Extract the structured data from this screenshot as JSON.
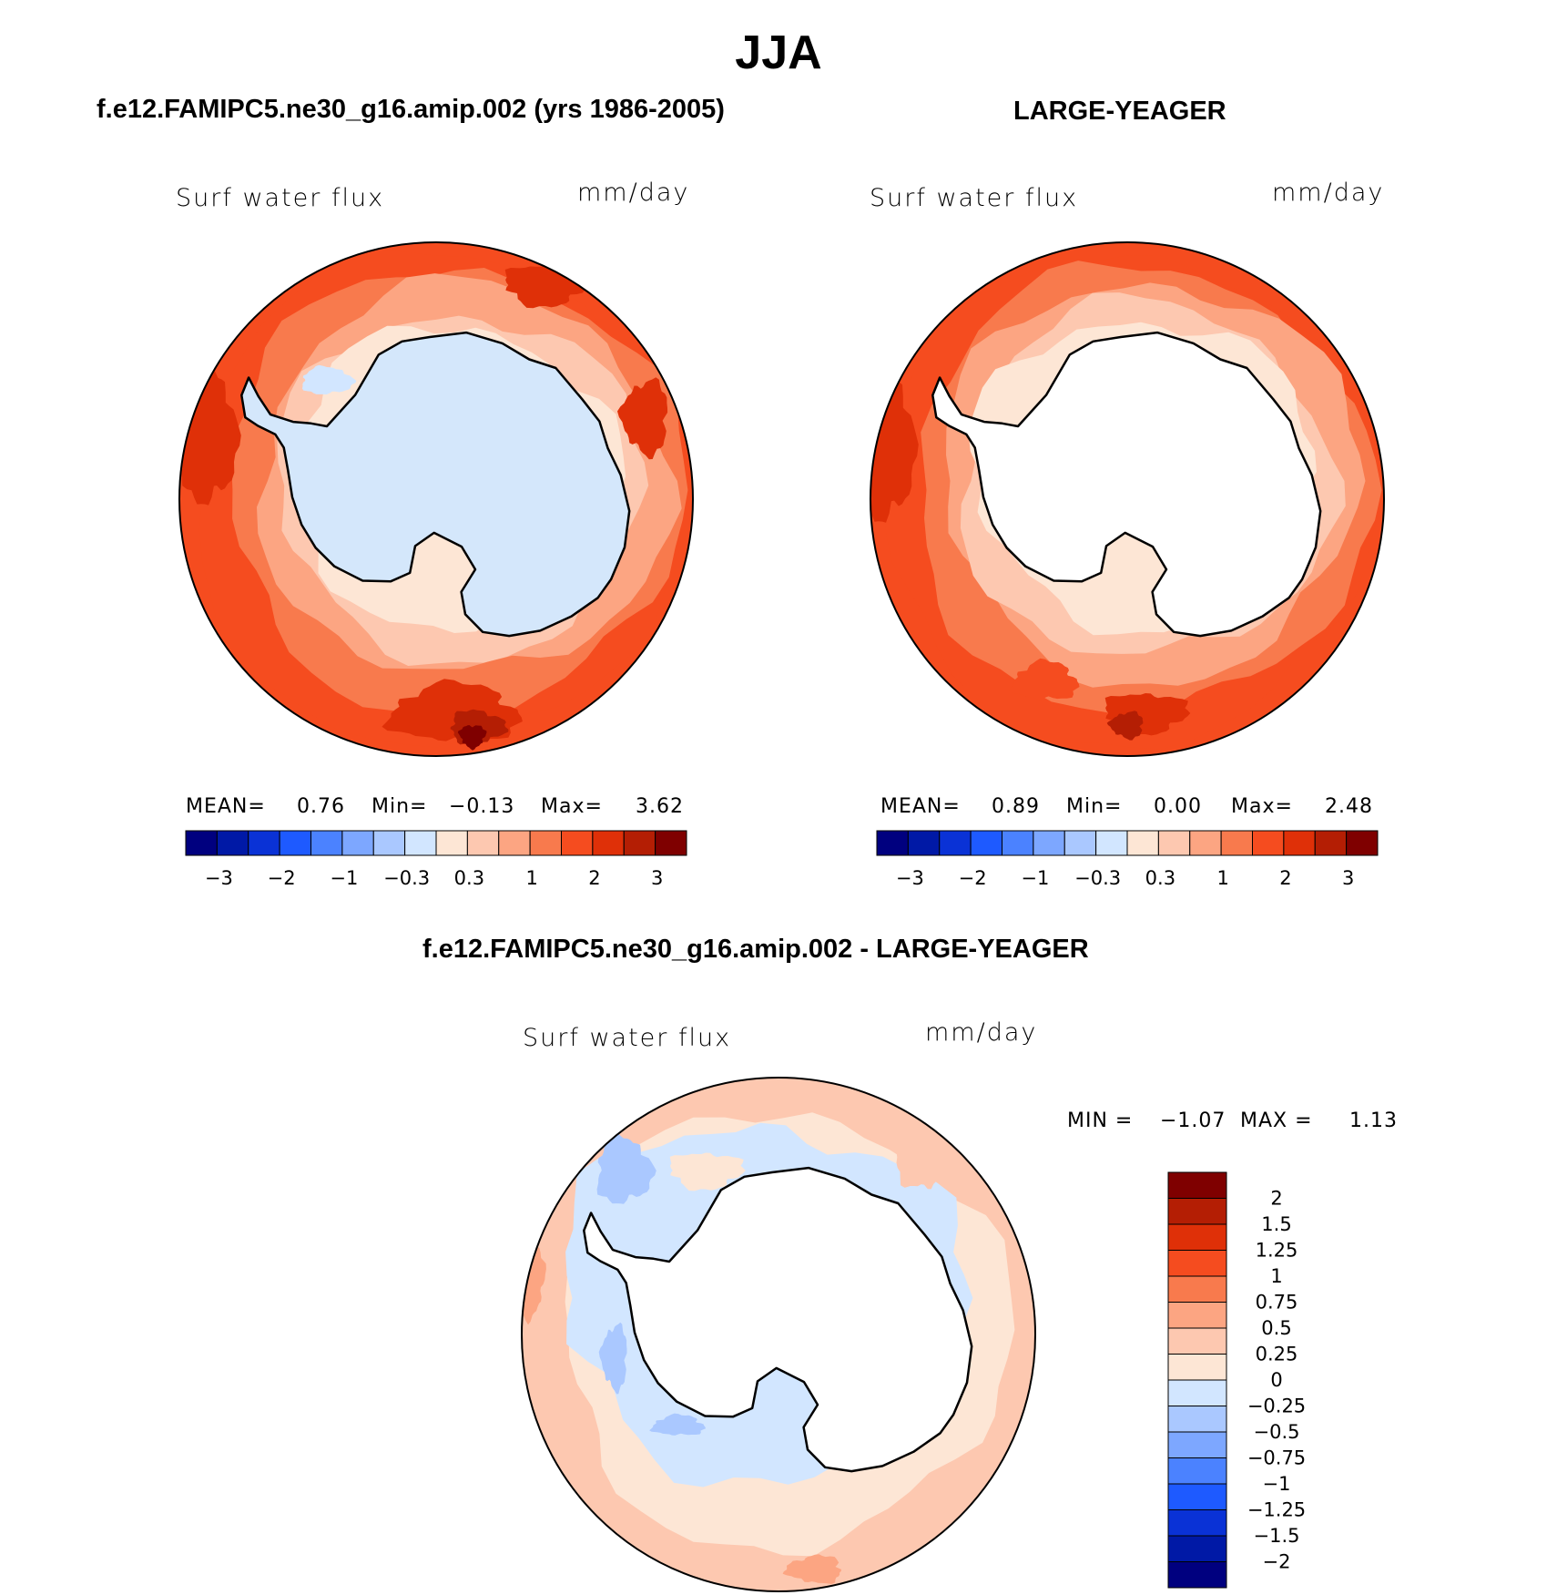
{
  "title": "JJA",
  "panels": [
    {
      "id": "model",
      "case_title": "f.e12.FAMIPC5.ne30_g16.amip.002 (yrs 1986-2005)",
      "variable": "Surf  water  flux",
      "units": "mm/day",
      "stats": {
        "mean_label": "MEAN=",
        "mean": "0.76",
        "min_label": "Min=",
        "min": "−0.13",
        "max_label": "Max=",
        "max": "3.62"
      }
    },
    {
      "id": "obs",
      "case_title": "LARGE-YEAGER",
      "variable": "Surf  water  flux",
      "units": "mm/day",
      "stats": {
        "mean_label": "MEAN=",
        "mean": "0.89",
        "min_label": "Min=",
        "min": "0.00",
        "max_label": "Max=",
        "max": "2.48"
      }
    },
    {
      "id": "diff",
      "case_title": "f.e12.FAMIPC5.ne30_g16.amip.002 - LARGE-YEAGER",
      "variable": "Surf  water  flux",
      "units": "mm/day",
      "stats": {
        "min_label": "MIN =",
        "min": "−1.07",
        "max_label": "MAX =",
        "max": "1.13"
      }
    }
  ],
  "colorbar_top": {
    "colors": [
      "#00007f",
      "#0019a6",
      "#0a32d6",
      "#1e5aff",
      "#4b82ff",
      "#7da7ff",
      "#aac8ff",
      "#d2e6ff",
      "#fde6d5",
      "#fdc8b0",
      "#fca582",
      "#f87a4d",
      "#f54c1f",
      "#df3008",
      "#b41e04",
      "#7f0000"
    ],
    "labels": [
      "−3",
      "−2",
      "−1",
      "−0.3",
      "0.3",
      "1",
      "2",
      "3"
    ]
  },
  "colorbar_diff": {
    "colors": [
      "#7f0000",
      "#b41e04",
      "#df3008",
      "#f54c1f",
      "#f87a4d",
      "#fca582",
      "#fdc8b0",
      "#fde6d5",
      "#d2e6ff",
      "#aac8ff",
      "#7da7ff",
      "#4b82ff",
      "#1e5aff",
      "#0a32d6",
      "#0019a6",
      "#00007f"
    ],
    "labels": [
      "2",
      "1.5",
      "1.25",
      "1",
      "0.75",
      "0.5",
      "0.25",
      "0",
      "−0.25",
      "−0.5",
      "−0.75",
      "−1",
      "−1.25",
      "−1.5",
      "−2"
    ]
  },
  "map_colors": {
    "land": "#d4e7fb",
    "land_white": "#ffffff",
    "c1": "#fde6d5",
    "c2": "#fdc8b0",
    "c3": "#fca582",
    "c4": "#f87a4d",
    "c5": "#f54c1f",
    "c6": "#df3008",
    "c7": "#b41e04",
    "c8": "#7f0000",
    "neg1": "#d2e6ff",
    "neg2": "#aac8ff",
    "neg3": "#7da7ff"
  }
}
